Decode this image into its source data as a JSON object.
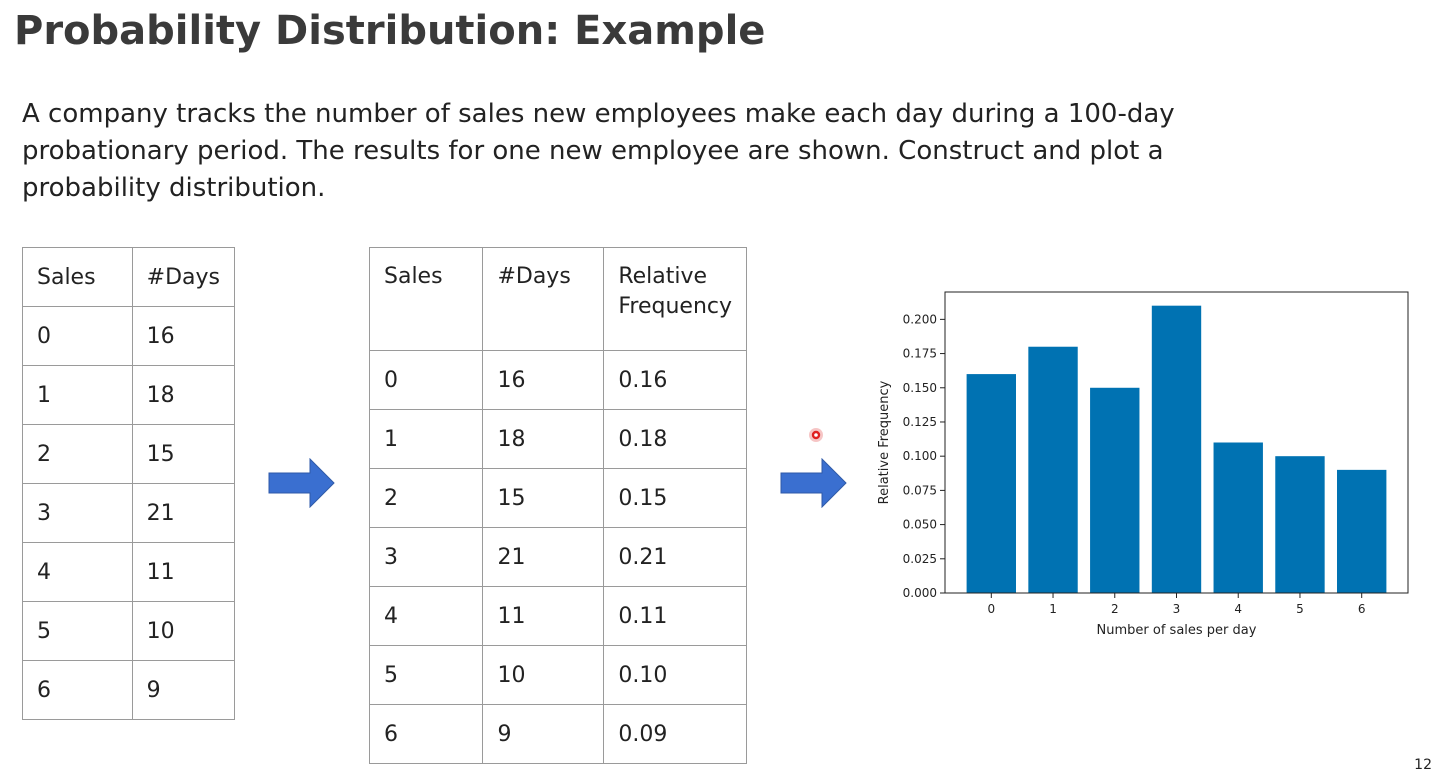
{
  "slide": {
    "title": "Probability Distribution: Example",
    "body": "A company tracks the number of sales new employees make each day during a 100-day probationary period. The results for one new employee are shown. Construct and plot a probability distribution.",
    "page_number": "12"
  },
  "table_frequency": {
    "headers": [
      "Sales",
      "#Days"
    ],
    "rows": [
      [
        "0",
        "16"
      ],
      [
        "1",
        "18"
      ],
      [
        "2",
        "15"
      ],
      [
        "3",
        "21"
      ],
      [
        "4",
        "11"
      ],
      [
        "5",
        "10"
      ],
      [
        "6",
        "9"
      ]
    ]
  },
  "table_relative": {
    "headers": [
      "Sales",
      "#Days",
      "Relative Frequency"
    ],
    "rows": [
      [
        "0",
        "16",
        "0.16"
      ],
      [
        "1",
        "18",
        "0.18"
      ],
      [
        "2",
        "15",
        "0.15"
      ],
      [
        "3",
        "21",
        "0.21"
      ],
      [
        "4",
        "11",
        "0.11"
      ],
      [
        "5",
        "10",
        "0.10"
      ],
      [
        "6",
        "9",
        "0.09"
      ]
    ]
  },
  "arrows": {
    "icon": "right-arrow-icon",
    "color": "#3a6fd0"
  },
  "chart_data": {
    "type": "bar",
    "categories": [
      "0",
      "1",
      "2",
      "3",
      "4",
      "5",
      "6"
    ],
    "values": [
      0.16,
      0.18,
      0.15,
      0.21,
      0.11,
      0.1,
      0.09
    ],
    "xlabel": "Number of sales per day",
    "ylabel": "Relative Frequency",
    "ylim": [
      0,
      0.22
    ],
    "yticks": [
      "0.000",
      "0.025",
      "0.050",
      "0.075",
      "0.100",
      "0.125",
      "0.150",
      "0.175",
      "0.200"
    ],
    "bar_color": "#0072b2",
    "grid": false
  }
}
